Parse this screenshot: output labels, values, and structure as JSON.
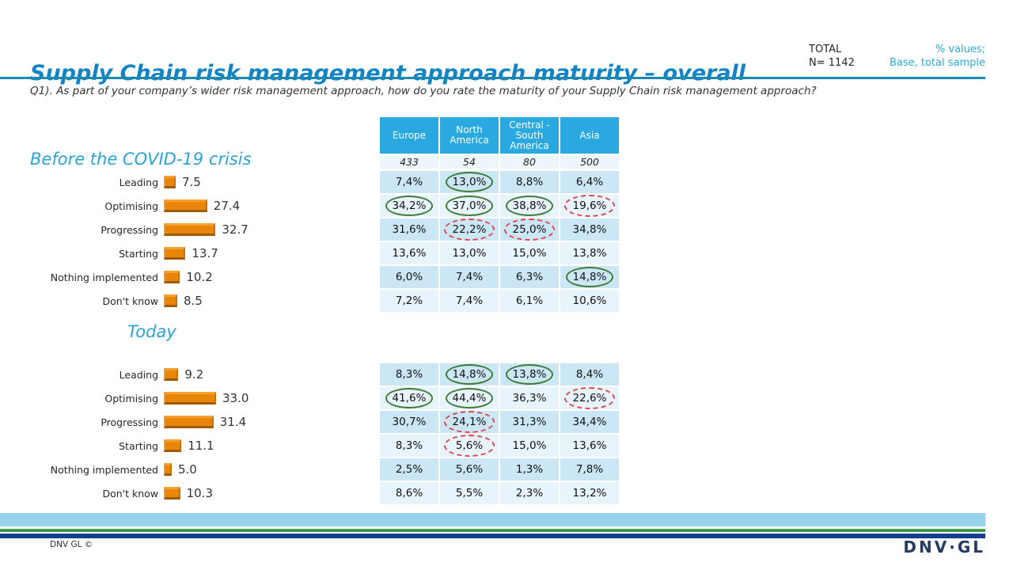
{
  "slide": {
    "title": "Supply Chain risk management approach maturity – overall",
    "total_label": "TOTAL",
    "total_n": "N= 1142",
    "note_line1": "% values;",
    "note_line2": "Base, total sample",
    "question": "Q1). As part of your company’s wider risk management approach, how do you rate the maturity of your Supply Chain risk management approach?",
    "footer_copyright": "DNV GL ©",
    "logo_text": "DNV·GL"
  },
  "colors": {
    "title_blue": "#1184C5",
    "accent_cyan": "#29A9E0",
    "bar_orange": "#E8860B",
    "highlight_green_circle": "#3F7C38",
    "highlight_red_dashed_circle": "#E0444F",
    "table_row_dark": "#CBE7F5",
    "table_row_light": "#E8F4FB",
    "footer_lightblue": "#97D4EC",
    "footer_green": "#3F9C46",
    "footer_navy": "#12408E"
  },
  "chart_data": [
    {
      "type": "bar",
      "orientation": "horizontal",
      "title": "Before the COVID-19 crisis",
      "categories": [
        "Leading",
        "Optimising",
        "Progressing",
        "Starting",
        "Nothing implemented",
        "Don't know"
      ],
      "values": [
        7.5,
        27.4,
        32.7,
        13.7,
        10.2,
        8.5
      ],
      "value_labels": [
        "7.5",
        "27.4",
        "32.7",
        "13.7",
        "10.2",
        "8.5"
      ],
      "xlim": [
        0,
        40
      ],
      "bar_color": "#E8860B",
      "grid": false,
      "legend": false
    },
    {
      "type": "bar",
      "orientation": "horizontal",
      "title": "Today",
      "categories": [
        "Leading",
        "Optimising",
        "Progressing",
        "Starting",
        "Nothing implemented",
        "Don't know"
      ],
      "values": [
        9.2,
        33.0,
        31.4,
        11.1,
        5.0,
        10.3
      ],
      "value_labels": [
        "9.2",
        "33.0",
        "31.4",
        "11.1",
        "5.0",
        "10.3"
      ],
      "xlim": [
        0,
        40
      ],
      "bar_color": "#E8860B",
      "grid": false,
      "legend": false
    },
    {
      "type": "table",
      "title": "",
      "columns": [
        "Europe",
        "North America",
        "Central - South America",
        "Asia"
      ],
      "base": [
        "433",
        "54",
        "80",
        "500"
      ],
      "row_categories": [
        "Leading",
        "Optimising",
        "Progressing",
        "Starting",
        "Nothing implemented",
        "Don't know"
      ],
      "before_rows": [
        [
          {
            "v": "7,4%",
            "hl": ""
          },
          {
            "v": "13,0%",
            "hl": "green"
          },
          {
            "v": "8,8%",
            "hl": ""
          },
          {
            "v": "6,4%",
            "hl": ""
          }
        ],
        [
          {
            "v": "34,2%",
            "hl": "green"
          },
          {
            "v": "37,0%",
            "hl": "green"
          },
          {
            "v": "38,8%",
            "hl": "green"
          },
          {
            "v": "19,6%",
            "hl": "red"
          }
        ],
        [
          {
            "v": "31,6%",
            "hl": ""
          },
          {
            "v": "22,2%",
            "hl": "red"
          },
          {
            "v": "25,0%",
            "hl": "red"
          },
          {
            "v": "34,8%",
            "hl": ""
          }
        ],
        [
          {
            "v": "13,6%",
            "hl": ""
          },
          {
            "v": "13,0%",
            "hl": ""
          },
          {
            "v": "15,0%",
            "hl": ""
          },
          {
            "v": "13,8%",
            "hl": ""
          }
        ],
        [
          {
            "v": "6,0%",
            "hl": ""
          },
          {
            "v": "7,4%",
            "hl": ""
          },
          {
            "v": "6,3%",
            "hl": ""
          },
          {
            "v": "14,8%",
            "hl": "green"
          }
        ],
        [
          {
            "v": "7,2%",
            "hl": ""
          },
          {
            "v": "7,4%",
            "hl": ""
          },
          {
            "v": "6,1%",
            "hl": ""
          },
          {
            "v": "10,6%",
            "hl": ""
          }
        ]
      ],
      "today_rows": [
        [
          {
            "v": "8,3%",
            "hl": ""
          },
          {
            "v": "14,8%",
            "hl": "green"
          },
          {
            "v": "13,8%",
            "hl": "green"
          },
          {
            "v": "8,4%",
            "hl": ""
          }
        ],
        [
          {
            "v": "41,6%",
            "hl": "green"
          },
          {
            "v": "44,4%",
            "hl": "green"
          },
          {
            "v": "36,3%",
            "hl": ""
          },
          {
            "v": "22,6%",
            "hl": "red"
          }
        ],
        [
          {
            "v": "30,7%",
            "hl": ""
          },
          {
            "v": "24,1%",
            "hl": "red"
          },
          {
            "v": "31,3%",
            "hl": ""
          },
          {
            "v": "34,4%",
            "hl": ""
          }
        ],
        [
          {
            "v": "8,3%",
            "hl": ""
          },
          {
            "v": "5,6%",
            "hl": "red"
          },
          {
            "v": "15,0%",
            "hl": ""
          },
          {
            "v": "13,6%",
            "hl": ""
          }
        ],
        [
          {
            "v": "2,5%",
            "hl": ""
          },
          {
            "v": "5,6%",
            "hl": ""
          },
          {
            "v": "1,3%",
            "hl": ""
          },
          {
            "v": "7,8%",
            "hl": ""
          }
        ],
        [
          {
            "v": "8,6%",
            "hl": ""
          },
          {
            "v": "5,5%",
            "hl": ""
          },
          {
            "v": "2,3%",
            "hl": ""
          },
          {
            "v": "13,2%",
            "hl": ""
          }
        ]
      ]
    }
  ]
}
